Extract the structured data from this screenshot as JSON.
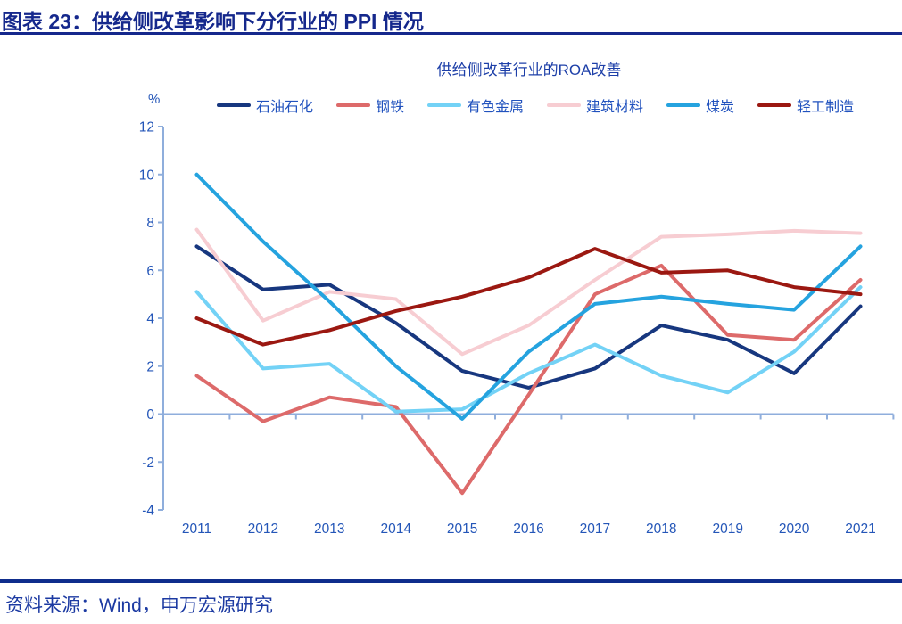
{
  "header": {
    "title": "图表 23：供给侧改革影响下分行业的 PPI 情况"
  },
  "footer": {
    "source": "资料来源：Wind，申万宏源研究"
  },
  "colors": {
    "header_text": "#15288C",
    "header_rule": "#15288C",
    "title_text": "#1D3FA8",
    "axis_line": "#8FAEDC",
    "tick_text": "#2456B8",
    "legend_text": "#2152BE",
    "footer_rule": "#0F2D8C",
    "source_text": "#1C3AA2"
  },
  "chart_data": {
    "type": "line",
    "title": "供给侧改革行业的ROA改善",
    "unit_label": "%",
    "x": [
      2011,
      2012,
      2013,
      2014,
      2015,
      2016,
      2017,
      2018,
      2019,
      2020,
      2021
    ],
    "ylim": [
      -4,
      12
    ],
    "yticks": [
      12,
      10,
      8,
      6,
      4,
      2,
      0,
      -2,
      -4
    ],
    "grid": false,
    "legend_position": "top",
    "series": [
      {
        "key": "petrochemical",
        "name": "石油石化",
        "color": "#17377F",
        "values": [
          7.0,
          5.2,
          5.4,
          3.8,
          1.8,
          1.1,
          1.9,
          3.7,
          3.1,
          1.7,
          4.5
        ]
      },
      {
        "key": "steel",
        "name": "钢铁",
        "color": "#DD6A6A",
        "values": [
          1.6,
          -0.3,
          0.7,
          0.3,
          -3.3,
          0.8,
          5.0,
          6.2,
          3.3,
          3.1,
          5.6
        ]
      },
      {
        "key": "nonferrous-metals",
        "name": "有色金属",
        "color": "#73D2F6",
        "values": [
          5.1,
          1.9,
          2.1,
          0.1,
          0.2,
          1.7,
          2.9,
          1.6,
          0.9,
          2.6,
          5.3
        ]
      },
      {
        "key": "building-materials",
        "name": "建筑材料",
        "color": "#F7CDD2",
        "values": [
          7.7,
          3.9,
          5.1,
          4.8,
          2.5,
          3.7,
          5.6,
          7.4,
          7.5,
          7.65,
          7.55
        ]
      },
      {
        "key": "coal",
        "name": "煤炭",
        "color": "#25A3DF",
        "values": [
          10.0,
          7.2,
          4.7,
          2.0,
          -0.2,
          2.6,
          4.6,
          4.9,
          4.6,
          4.35,
          7.0
        ]
      },
      {
        "key": "light-manufacturing",
        "name": "轻工制造",
        "color": "#9B1811",
        "values": [
          4.0,
          2.9,
          3.5,
          4.3,
          4.9,
          5.7,
          6.9,
          5.9,
          6.0,
          5.3,
          5.0
        ]
      }
    ]
  }
}
